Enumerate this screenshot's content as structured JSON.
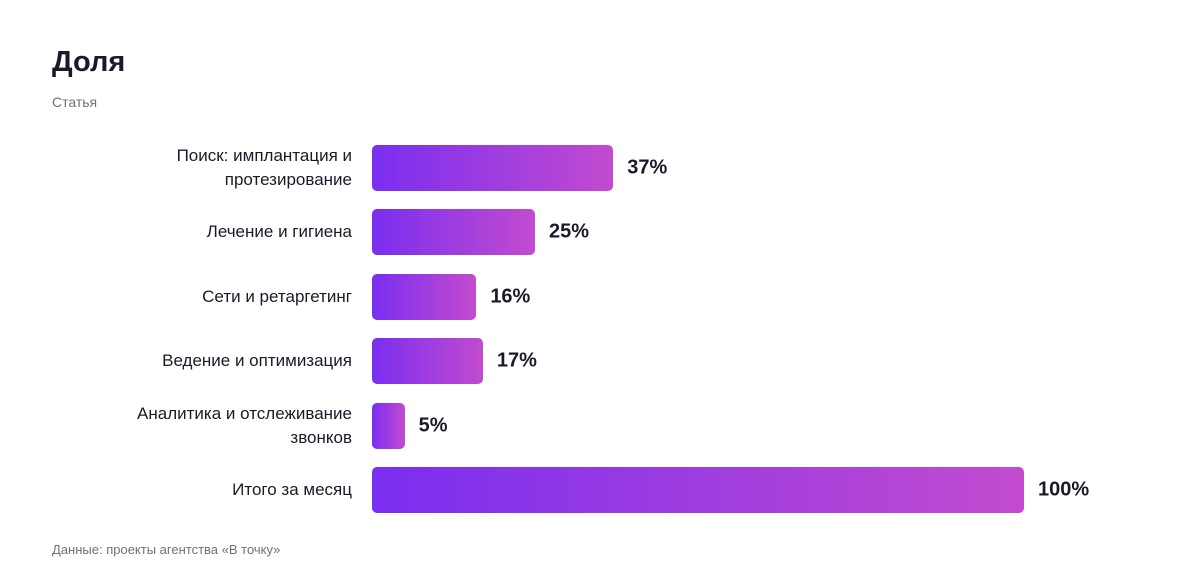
{
  "chart_data": {
    "type": "bar",
    "orientation": "horizontal",
    "title": "Доля",
    "subtitle": "Статья",
    "source": "Данные: проекты агентства «В точку»",
    "categories": [
      "Поиск: имплантация и протезирование",
      "Лечение и гигиена",
      "Сети и ретаргетинг",
      "Ведение и оптимизация",
      "Аналитика и отслеживание звонков",
      "Итого за месяц"
    ],
    "values": [
      37,
      25,
      16,
      17,
      5,
      100
    ],
    "value_labels": [
      "37%",
      "25%",
      "16%",
      "17%",
      "5%",
      "100%"
    ],
    "gradient": [
      "#7a2ef0",
      "#c24bcf"
    ]
  }
}
